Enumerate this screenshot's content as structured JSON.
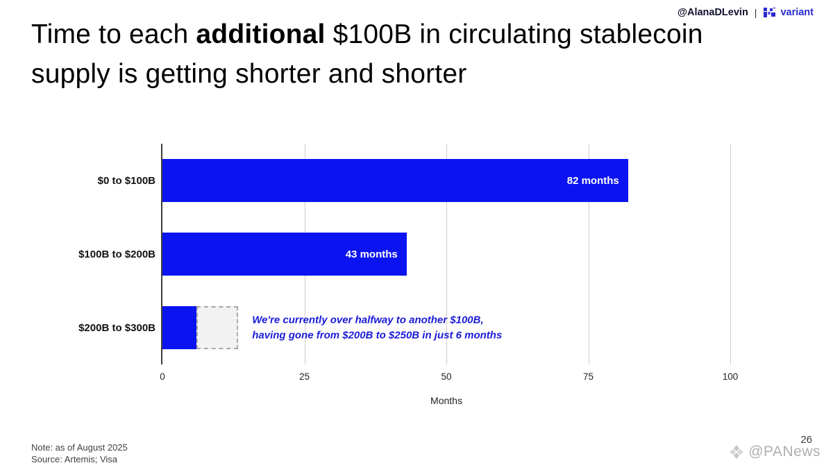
{
  "header": {
    "handle": "@AlanaDLevin",
    "separator": "|",
    "brand": "variant"
  },
  "title": {
    "pre": "Time to each ",
    "bold": "additional",
    "post": " $100B in circulating stablecoin supply is getting shorter and shorter"
  },
  "chart_data": {
    "type": "bar",
    "orientation": "horizontal",
    "title": "Time to each additional $100B in circulating stablecoin supply is getting shorter and shorter",
    "categories": [
      "$0 to $100B",
      "$100B to $200B",
      "$200B to $300B"
    ],
    "values": [
      82,
      43,
      6
    ],
    "bar_labels": [
      "82 months",
      "43 months",
      ""
    ],
    "projection": {
      "category_index": 2,
      "from": 6,
      "to": 13.3,
      "style": "dashed-outline"
    },
    "annotation_line1": "We're currently over halfway to another $100B,",
    "annotation_line2": "having gone from $200B to $250B in just 6 months",
    "xlabel": "Months",
    "x_ticks": [
      0,
      25,
      50,
      75,
      100
    ],
    "xlim": [
      0,
      100
    ],
    "bar_color": "#0b14f0",
    "annotation_color": "#1a1ad8",
    "grid": true,
    "legend": false
  },
  "footer": {
    "note": "Note: as of August 2025",
    "source": "Source: Artemis; Visa",
    "page_number": "26",
    "watermark": "@PANews"
  }
}
